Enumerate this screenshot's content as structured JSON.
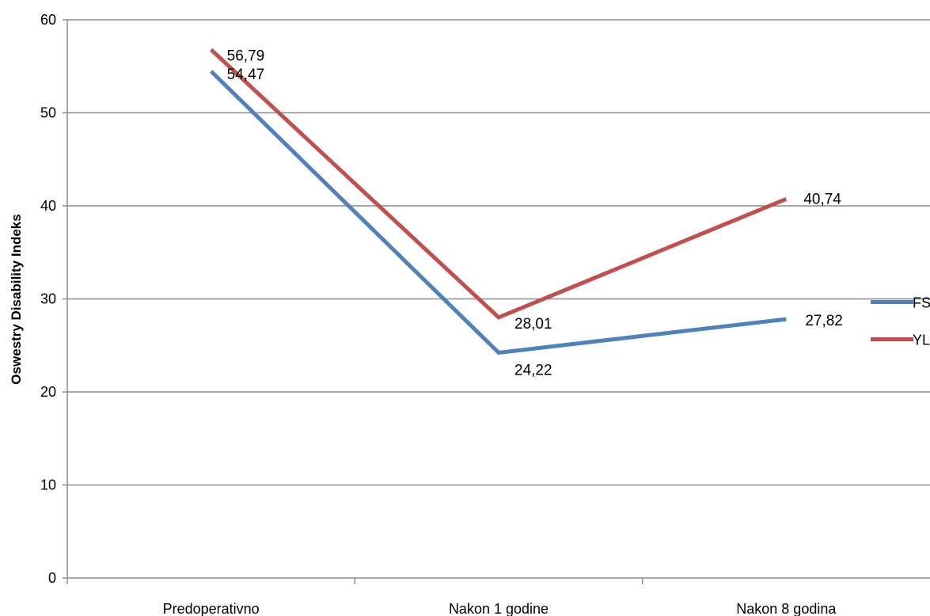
{
  "chart_data": {
    "type": "line",
    "title": "",
    "xlabel": "",
    "ylabel": "Oswestry Disability Indeks",
    "categories": [
      "Predoperativno",
      "Nakon 1 godine",
      "Nakon 8 godina"
    ],
    "ylim": [
      0,
      60
    ],
    "yticks": [
      0,
      10,
      20,
      30,
      40,
      50,
      60
    ],
    "grid": true,
    "legend_position": "right",
    "series": [
      {
        "name": "FSL",
        "color": "#4f81bd",
        "values": [
          54.47,
          24.22,
          27.82
        ],
        "labels": [
          "54,47",
          "24,22",
          "27,82"
        ]
      },
      {
        "name": "YL",
        "color": "#c0504d",
        "values": [
          56.79,
          28.01,
          40.74
        ],
        "labels": [
          "56,79",
          "28,01",
          "40,74"
        ]
      }
    ]
  }
}
